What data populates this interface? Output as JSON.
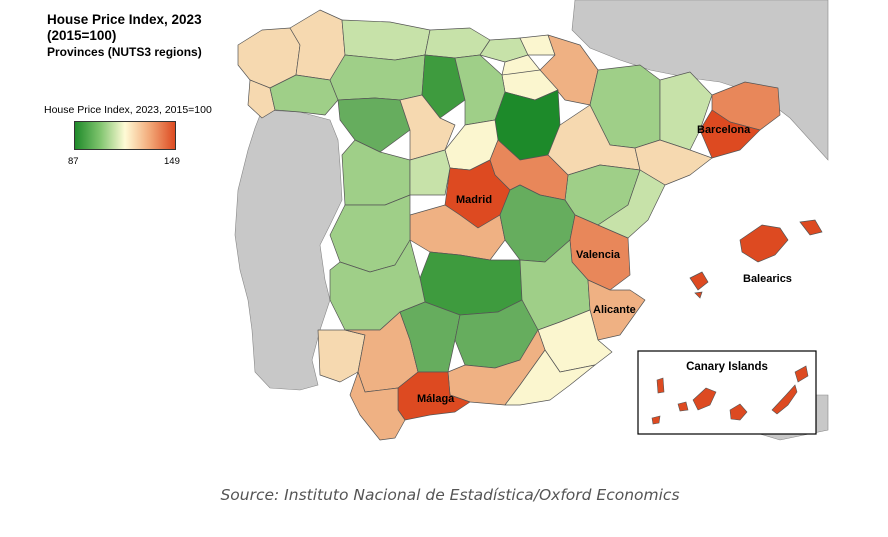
{
  "title": {
    "line1": "House Price Index, 2023",
    "line2": "(2015=100)",
    "line3": "Provinces (NUTS3 regions)"
  },
  "legend": {
    "label": "House Price Index,  2023, 2015=100",
    "min": "87",
    "max": "149",
    "colors": [
      "#1f8a2a",
      "#7fc46e",
      "#fffbd6",
      "#f2a878",
      "#dd4a21"
    ]
  },
  "labels": {
    "barcelona": "Barcelona",
    "madrid": "Madrid",
    "valencia": "Valencia",
    "balearics": "Balearics",
    "alicante": "Alicante",
    "malaga": "Málaga",
    "canary": "Canary Islands"
  },
  "source": "Source: Instituto Nacional de Estadística/Oxford Economics",
  "colors": {
    "dark_green": "#1d8a2a",
    "green": "#66ad5e",
    "light_green": "#9fcf88",
    "pale_green": "#c7e2a9",
    "cream": "#fbf6cf",
    "beige": "#f6d9b0",
    "light_orange": "#efb183",
    "orange": "#e8875a",
    "red_orange": "#dd4a21",
    "neighbor_grey": "#c8c8c8",
    "sea": "#ffffff"
  }
}
